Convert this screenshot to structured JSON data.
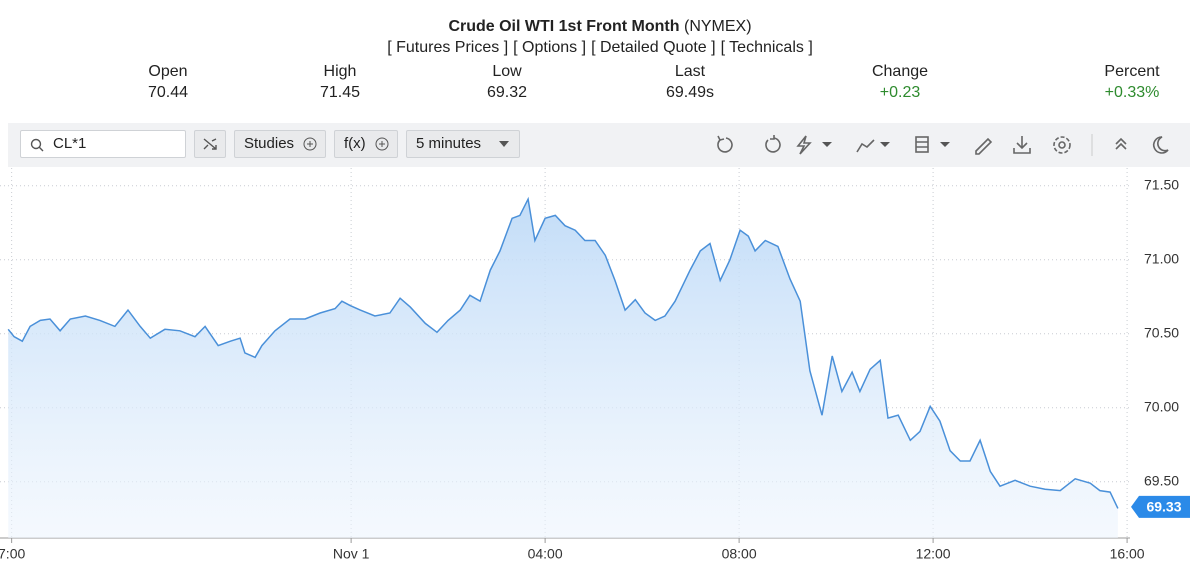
{
  "quote": {
    "title": "Crude Oil WTI 1st Front Month",
    "exchange": "(NYMEX)",
    "links": [
      "[ Futures Prices ]",
      "[ Options ]",
      "[ Detailed Quote ]",
      "[ Technicals ]"
    ],
    "stats": [
      {
        "label": "Open",
        "value": "70.44"
      },
      {
        "label": "High",
        "value": "71.45"
      },
      {
        "label": "Low",
        "value": "69.32"
      },
      {
        "label": "Last",
        "value": "69.49s"
      },
      {
        "label": "Change",
        "value": "+0.23"
      },
      {
        "label": "Percent",
        "value": "+0.33%"
      }
    ]
  },
  "toolbar": {
    "symbol": "CL*1",
    "studies": "Studies",
    "fx": "f(x)",
    "interval": "5 minutes"
  },
  "chart_data": {
    "type": "area",
    "color": "#4a90d9",
    "grid": true,
    "x": [
      -7.07,
      -6.95,
      -6.78,
      -6.62,
      -6.41,
      -6.21,
      -6.0,
      -5.79,
      -5.48,
      -5.18,
      -4.87,
      -4.6,
      -4.35,
      -4.14,
      -3.84,
      -3.53,
      -3.22,
      -3.01,
      -2.74,
      -2.49,
      -2.29,
      -2.19,
      -1.98,
      -1.84,
      -1.57,
      -1.26,
      -0.95,
      -0.64,
      -0.33,
      -0.19,
      -0.02,
      0.19,
      0.49,
      0.8,
      1.01,
      1.22,
      1.53,
      1.77,
      2.0,
      2.25,
      2.45,
      2.66,
      2.87,
      3.07,
      3.32,
      3.48,
      3.65,
      3.79,
      4.0,
      4.21,
      4.41,
      4.62,
      4.82,
      5.03,
      5.24,
      5.44,
      5.65,
      5.86,
      6.06,
      6.27,
      6.47,
      6.68,
      6.99,
      7.2,
      7.4,
      7.61,
      7.81,
      8.02,
      8.19,
      8.33,
      8.54,
      8.8,
      9.05,
      9.26,
      9.46,
      9.71,
      9.92,
      10.12,
      10.33,
      10.49,
      10.7,
      10.91,
      11.07,
      11.28,
      11.53,
      11.73,
      11.94,
      12.14,
      12.35,
      12.56,
      12.76,
      12.97,
      13.18,
      13.38,
      13.69,
      14.0,
      14.31,
      14.62,
      14.93,
      15.24,
      15.44,
      15.65,
      15.81
    ],
    "values": [
      70.53,
      70.48,
      70.45,
      70.55,
      70.59,
      70.6,
      70.52,
      70.6,
      70.62,
      70.59,
      70.55,
      70.66,
      70.55,
      70.47,
      70.53,
      70.52,
      70.48,
      70.55,
      70.42,
      70.45,
      70.47,
      70.37,
      70.34,
      70.42,
      70.52,
      70.6,
      70.6,
      70.64,
      70.67,
      70.72,
      70.69,
      70.66,
      70.62,
      70.64,
      70.74,
      70.68,
      70.57,
      70.51,
      70.59,
      70.66,
      70.76,
      70.72,
      70.93,
      71.06,
      71.28,
      71.3,
      71.41,
      71.13,
      71.28,
      71.3,
      71.23,
      71.2,
      71.13,
      71.13,
      71.03,
      70.86,
      70.66,
      70.73,
      70.64,
      70.59,
      70.62,
      70.72,
      70.93,
      71.06,
      71.11,
      70.86,
      71.0,
      71.2,
      71.16,
      71.06,
      71.13,
      71.09,
      70.87,
      70.72,
      70.25,
      69.95,
      70.35,
      70.11,
      70.24,
      70.11,
      70.26,
      70.32,
      69.93,
      69.95,
      69.78,
      69.84,
      70.01,
      69.91,
      69.71,
      69.64,
      69.64,
      69.78,
      69.57,
      69.47,
      69.51,
      69.47,
      69.45,
      69.44,
      69.52,
      69.49,
      69.44,
      69.43,
      69.32
    ],
    "xlim": [
      -7.24,
      16.06
    ],
    "xticks": [
      {
        "value": -7,
        "label": "7:00"
      },
      {
        "value": 0,
        "label": "Nov 1"
      },
      {
        "value": 4,
        "label": "04:00"
      },
      {
        "value": 8,
        "label": "08:00"
      },
      {
        "value": 12,
        "label": "12:00"
      },
      {
        "value": 16,
        "label": "16:00"
      }
    ],
    "ylim": [
      69.12,
      71.62
    ],
    "yticks": [
      {
        "value": 69.5,
        "label": "69.50"
      },
      {
        "value": 70,
        "label": "70.00"
      },
      {
        "value": 70.5,
        "label": "70.50"
      },
      {
        "value": 71,
        "label": "71.00"
      },
      {
        "value": 71.5,
        "label": "71.50"
      }
    ],
    "last_price": 69.33
  }
}
